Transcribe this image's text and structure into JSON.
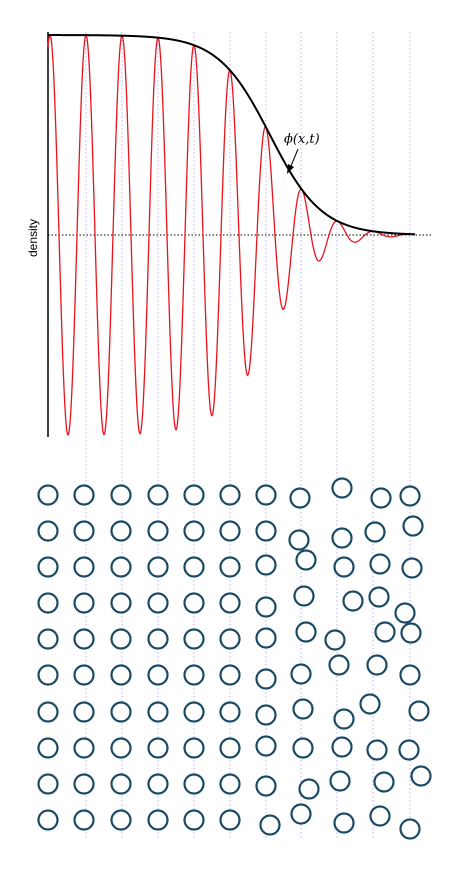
{
  "diagram": {
    "ylabel": "density",
    "curve_label": "ϕ(x,t)",
    "colors": {
      "envelope": "#000000",
      "wave": "#e8141c",
      "guides": "#b8b0ee",
      "particles": "#1a4a66",
      "baseline": "#000000"
    },
    "lattice": {
      "columns": 11,
      "rows": 10,
      "ordered_columns": 7
    }
  }
}
